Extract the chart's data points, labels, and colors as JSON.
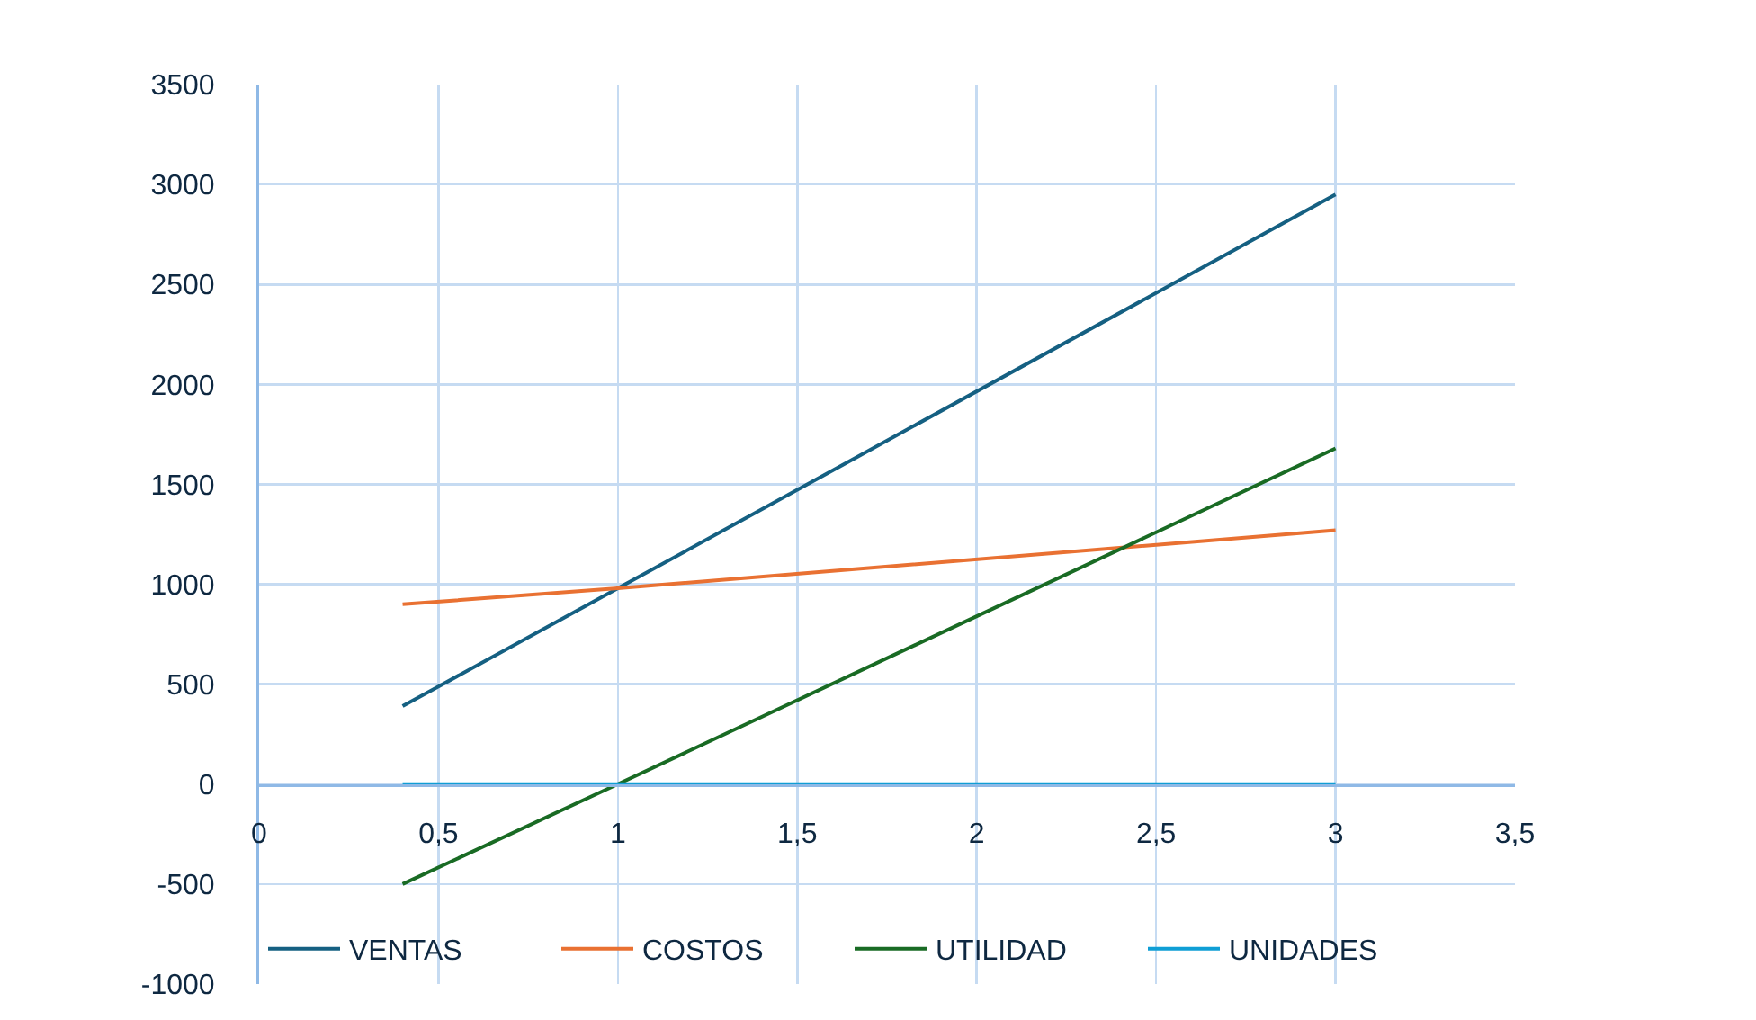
{
  "chart_data": {
    "type": "line",
    "x": [
      0.4,
      1,
      3
    ],
    "series": [
      {
        "name": "VENTAS",
        "color": "#156082",
        "values": [
          390,
          980,
          2950
        ]
      },
      {
        "name": "COSTOS",
        "color": "#e97132",
        "values": [
          900,
          980,
          1270
        ]
      },
      {
        "name": "UTILIDAD",
        "color": "#196b24",
        "values": [
          -500,
          0,
          1680
        ]
      },
      {
        "name": "UNIDADES",
        "color": "#0f9ed5",
        "values": [
          0,
          0,
          0
        ]
      }
    ],
    "xlim": [
      0,
      3.5
    ],
    "xticks": [
      0,
      {
        "value": 0.5,
        "label": "0,5"
      },
      1,
      {
        "value": 1.5,
        "label": "1,5"
      },
      2,
      {
        "value": 2.5,
        "label": "2,5"
      },
      3,
      {
        "value": 3.5,
        "label": "3,5"
      }
    ],
    "ylim": [
      -1000,
      3500
    ],
    "yticks": [
      -1000,
      -500,
      0,
      500,
      1000,
      1500,
      2000,
      2500,
      3000,
      3500
    ],
    "grid": true,
    "legend": "bottom",
    "marker": "none",
    "line_style": "solid"
  }
}
